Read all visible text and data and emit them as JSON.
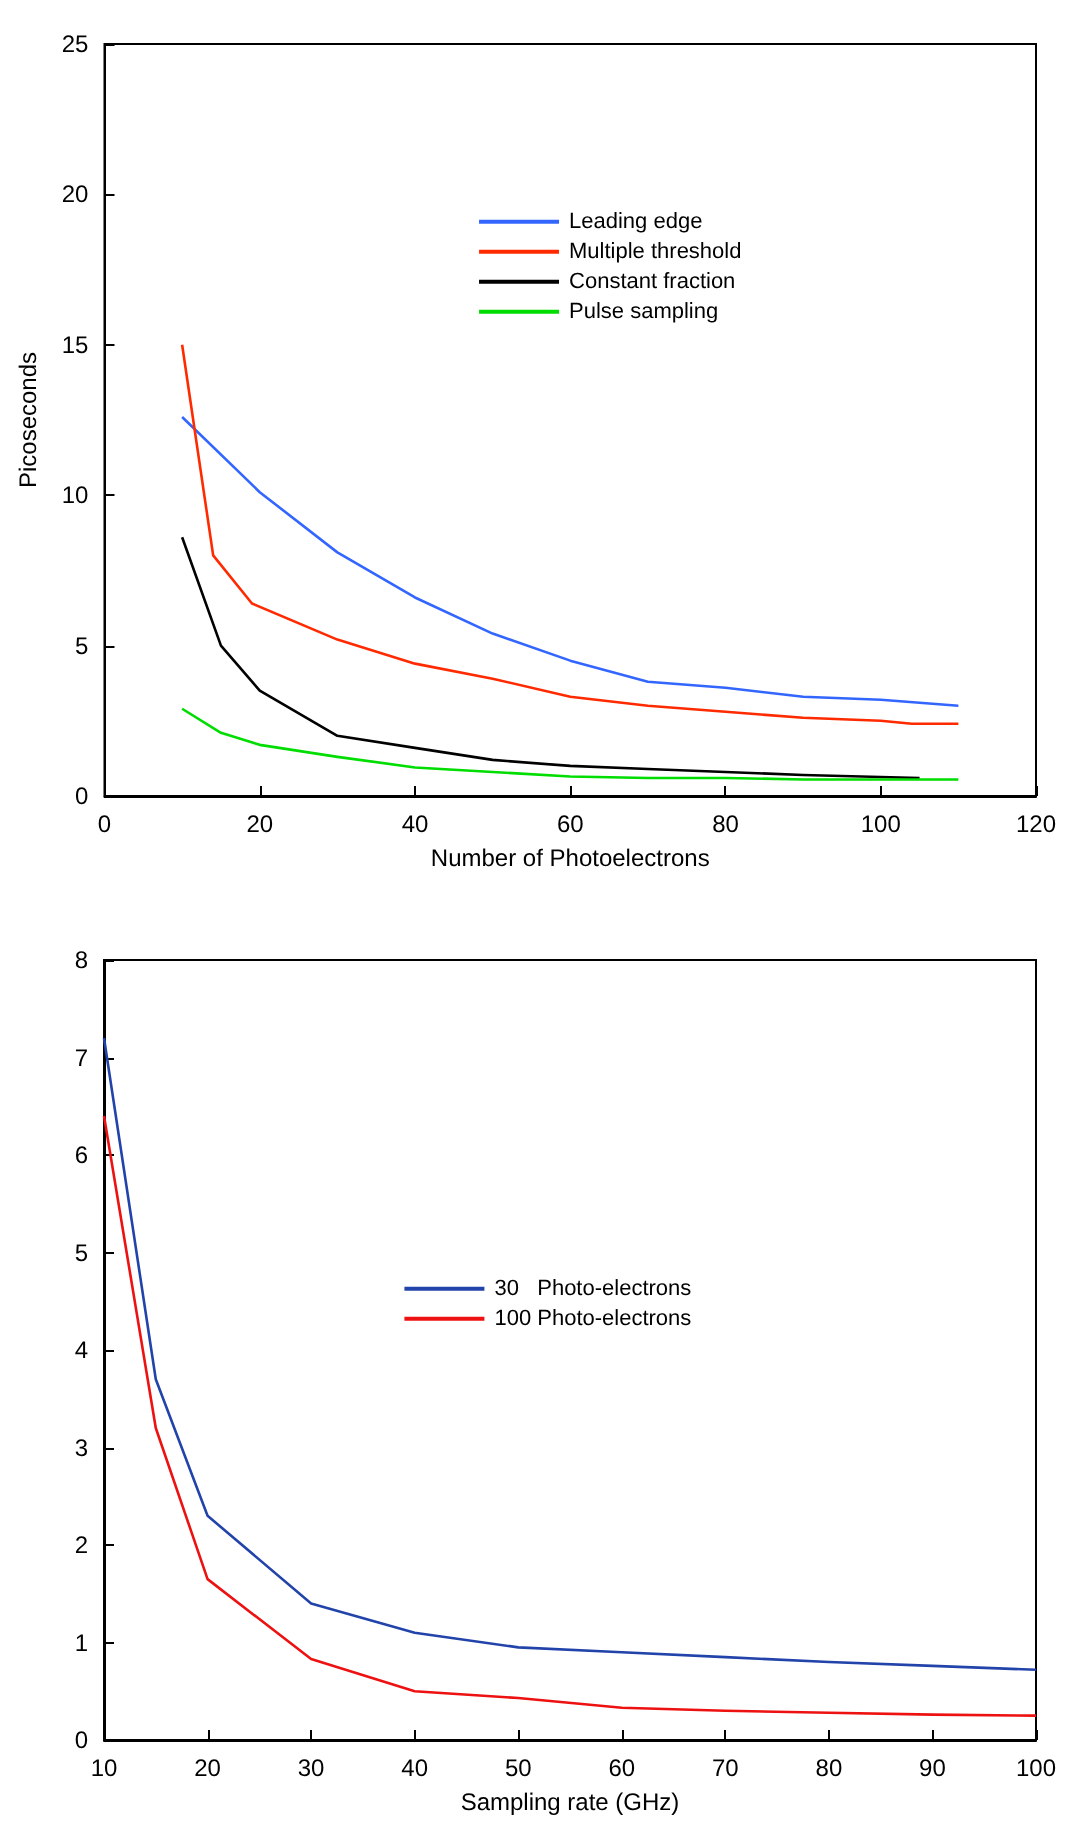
{
  "chart_data": [
    {
      "type": "line",
      "xlabel": "Number of Photoelectrons",
      "ylabel": "Picoseconds",
      "xlim": [
        0,
        120
      ],
      "xticks": [
        0,
        20,
        40,
        60,
        80,
        100,
        120
      ],
      "ylim": [
        0,
        25
      ],
      "yticks": [
        0,
        5,
        10,
        15,
        20,
        25
      ],
      "legend": "top right",
      "series": [
        {
          "name": "Leading edge",
          "color": "#3366ff",
          "x": [
            10,
            20,
            30,
            40,
            50,
            60,
            70,
            80,
            90,
            100,
            110
          ],
          "values": [
            12.6,
            10.1,
            8.1,
            6.6,
            5.4,
            4.5,
            3.8,
            3.6,
            3.3,
            3.2,
            3.0
          ]
        },
        {
          "name": "Multiple threshold",
          "color": "#ff2a00",
          "x": [
            10,
            14,
            19,
            30,
            40,
            50,
            60,
            70,
            80,
            90,
            100,
            104,
            110
          ],
          "values": [
            15,
            8,
            6.4,
            5.2,
            4.4,
            3.9,
            3.3,
            3.0,
            2.8,
            2.6,
            2.5,
            2.4,
            2.4
          ]
        },
        {
          "name": "Constant fraction",
          "color": "#000000",
          "x": [
            10,
            15,
            20,
            30,
            40,
            50,
            60,
            70,
            80,
            90,
            105
          ],
          "values": [
            8.6,
            5,
            3.5,
            2.0,
            1.6,
            1.2,
            1.0,
            0.9,
            0.8,
            0.7,
            0.6
          ]
        },
        {
          "name": "Pulse sampling",
          "color": "#00dd00",
          "x": [
            10,
            15,
            20,
            30,
            40,
            50,
            60,
            70,
            80,
            90,
            110
          ],
          "values": [
            2.9,
            2.1,
            1.7,
            1.3,
            0.95,
            0.8,
            0.65,
            0.6,
            0.6,
            0.55,
            0.55
          ]
        }
      ]
    },
    {
      "type": "line",
      "xlabel": "Sampling rate (GHz)",
      "xlim": [
        10,
        100
      ],
      "xticks": [
        10,
        20,
        30,
        40,
        50,
        60,
        70,
        80,
        90,
        100
      ],
      "ylim": [
        0,
        8
      ],
      "yticks": [
        0,
        1,
        2,
        3,
        4,
        5,
        6,
        7,
        8
      ],
      "legend": "center",
      "series": [
        {
          "name": "30   Photo-electrons",
          "color": "#2244aa",
          "x": [
            10,
            15,
            20,
            30,
            40,
            50,
            60,
            70,
            80,
            90,
            100
          ],
          "values": [
            7.2,
            3.7,
            2.3,
            1.4,
            1.1,
            0.95,
            0.9,
            0.85,
            0.8,
            0.76,
            0.72
          ]
        },
        {
          "name": "100 Photo-electrons",
          "color": "#ee1111",
          "x": [
            10,
            15,
            20,
            30,
            40,
            50,
            60,
            70,
            80,
            90,
            100
          ],
          "values": [
            6.4,
            3.2,
            1.65,
            0.83,
            0.5,
            0.43,
            0.33,
            0.3,
            0.28,
            0.26,
            0.25
          ]
        }
      ]
    }
  ]
}
